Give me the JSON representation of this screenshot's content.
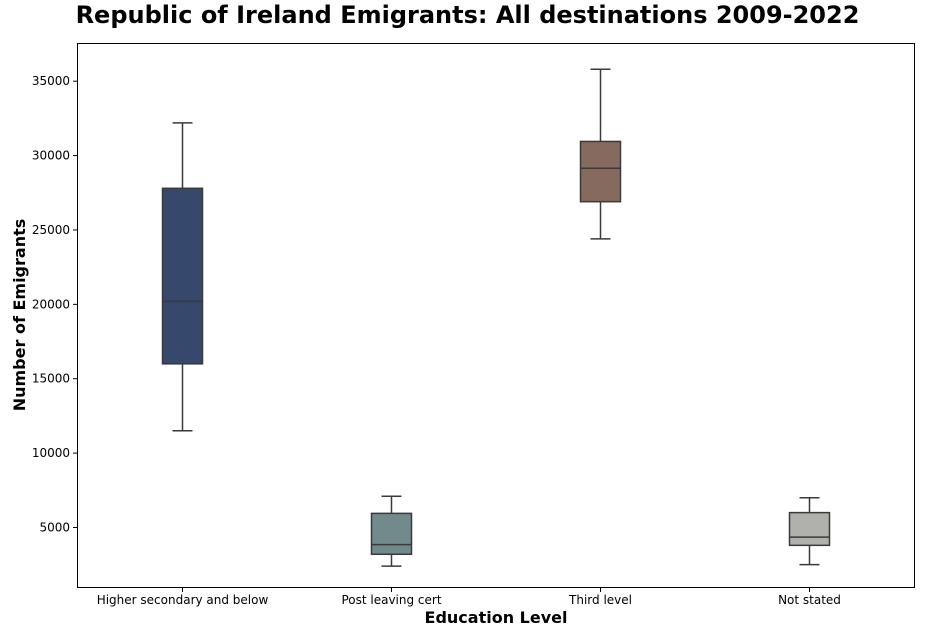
{
  "chart_data": {
    "type": "box",
    "title": "Republic of Ireland Emigrants: All destinations 2009-2022",
    "xlabel": "Education Level",
    "ylabel": "Number of Emigrants",
    "ylim": [
      1000,
      37500
    ],
    "yticks": [
      5000,
      10000,
      15000,
      20000,
      25000,
      30000,
      35000
    ],
    "categories": [
      "Higher secondary and below",
      "Post leaving cert",
      "Third level",
      "Not stated"
    ],
    "boxes": [
      {
        "category": "Higher secondary and below",
        "position": 0,
        "whisker_low": 11500,
        "q1": 16000,
        "median": 20200,
        "q3": 27800,
        "whisker_high": 32200,
        "color": "#36486b"
      },
      {
        "category": "Post leaving cert",
        "position": 1,
        "whisker_low": 2400,
        "q1": 3200,
        "median": 3850,
        "q3": 5950,
        "whisker_high": 7100,
        "color": "#728a8b"
      },
      {
        "category": "Third level",
        "position": 2,
        "whisker_low": 24400,
        "q1": 26900,
        "median": 29150,
        "q3": 30950,
        "whisker_high": 35800,
        "color": "#856a5d"
      },
      {
        "category": "Not stated",
        "position": 3,
        "whisker_low": 2500,
        "q1": 3800,
        "median": 4350,
        "q3": 6000,
        "whisker_high": 7000,
        "color": "#b0b1aa"
      }
    ],
    "grid": false,
    "legend": "none"
  }
}
